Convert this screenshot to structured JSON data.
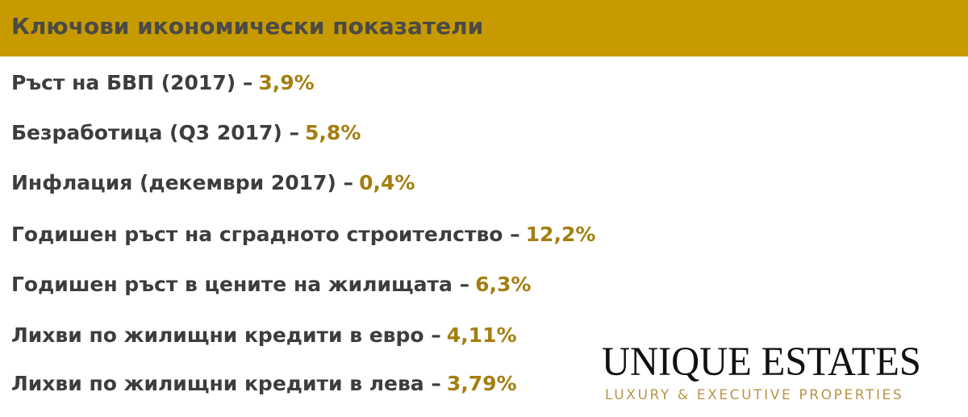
{
  "header": {
    "title": "Ключови икономически показатели"
  },
  "items": [
    {
      "label": "Ръст на БВП (2017) –",
      "value": "3,9%"
    },
    {
      "label": "Безработица (Q3 2017) –",
      "value": "5,8%"
    },
    {
      "label": "Инфлация (декември 2017) –",
      "value": "0,4%"
    },
    {
      "label": "Годишен ръст на сградното строителство –",
      "value": "12,2%"
    },
    {
      "label": "Годишен ръст в цените на жилищата –",
      "value": "6,3%"
    },
    {
      "label": "Лихви по жилищни кредити в евро –",
      "value": "4,11%"
    },
    {
      "label": "Лихви по жилищни кредити в лева –",
      "value": "3,79%"
    }
  ],
  "logo": {
    "name": "UNIQUE ESTATES",
    "tagline": "LUXURY & EXECUTIVE PROPERTIES"
  }
}
